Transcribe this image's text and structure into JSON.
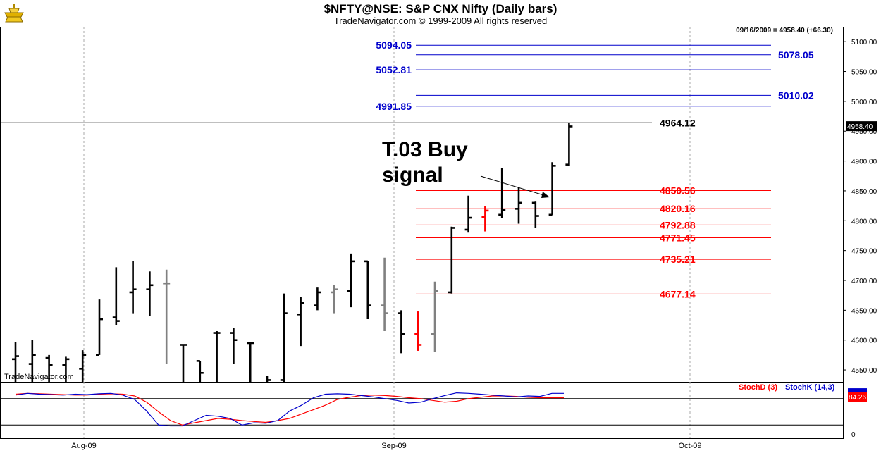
{
  "header": {
    "title": "$NFTY@NSE:  S&P CNX Nifty  (Daily bars)",
    "subtitle": "TradeNavigator.com © 1999-2009 All rights reserved",
    "quote": "09/16/2009 = 4958.40 (+66.30)",
    "watermark": "TradeNavigator.com"
  },
  "chart_data": [
    {
      "type": "bar",
      "subtype": "ohlc",
      "title": "$NFTY@NSE:  S&P CNX Nifty  (Daily bars)",
      "ylim": [
        4530,
        5125
      ],
      "y_ticks": [
        5100,
        5050,
        5000,
        4950,
        4900,
        4850,
        4800,
        4750,
        4700,
        4650,
        4600,
        4550
      ],
      "y_tick_labels": [
        "5100.00",
        "5050.00",
        "5000.00",
        "4950.00",
        "4900.00",
        "4850.00",
        "4800.00",
        "4750.00",
        "4700.00",
        "4650.00",
        "4600.00",
        "4550.00"
      ],
      "x_tick_labels": [
        "Aug-09",
        "Sep-09",
        "Oct-09"
      ],
      "last_price_label": "4958.40",
      "last_price": 4958.4,
      "bars": [
        {
          "o": 4568,
          "h": 4597,
          "l": 4530,
          "c": 4573,
          "color": "#000000"
        },
        {
          "o": 4560,
          "h": 4600,
          "l": 4530,
          "c": 4575,
          "color": "#000000"
        },
        {
          "o": 4570,
          "h": 4575,
          "l": 4530,
          "c": 4558,
          "color": "#000000"
        },
        {
          "o": 4558,
          "h": 4572,
          "l": 4530,
          "c": 4568,
          "color": "#000000"
        },
        {
          "o": 4552,
          "h": 4583,
          "l": 4530,
          "c": 4575,
          "color": "#000000"
        },
        {
          "o": 4575,
          "h": 4668,
          "l": 4575,
          "c": 4635,
          "color": "#000000"
        },
        {
          "o": 4638,
          "h": 4722,
          "l": 4625,
          "c": 4632,
          "color": "#000000"
        },
        {
          "o": 4680,
          "h": 4732,
          "l": 4645,
          "c": 4685,
          "color": "#000000"
        },
        {
          "o": 4685,
          "h": 4715,
          "l": 4640,
          "c": 4692,
          "color": "#000000"
        },
        {
          "o": 4695,
          "h": 4718,
          "l": 4560,
          "c": 4695,
          "color": "#808080"
        },
        {
          "o": 4592,
          "h": 4592,
          "l": 4530,
          "c": 4592,
          "color": "#000000"
        },
        {
          "o": 4565,
          "h": 4565,
          "l": 4530,
          "c": 4545,
          "color": "#000000"
        },
        {
          "o": 4612,
          "h": 4615,
          "l": 4530,
          "c": 4612,
          "color": "#000000"
        },
        {
          "o": 4612,
          "h": 4620,
          "l": 4560,
          "c": 4600,
          "color": "#000000"
        },
        {
          "o": 4595,
          "h": 4597,
          "l": 4530,
          "c": 4595,
          "color": "#000000"
        },
        {
          "o": 4530,
          "h": 4540,
          "l": 4530,
          "c": 4533,
          "color": "#000000"
        },
        {
          "o": 4533,
          "h": 4678,
          "l": 4530,
          "c": 4645,
          "color": "#000000"
        },
        {
          "o": 4643,
          "h": 4672,
          "l": 4590,
          "c": 4662,
          "color": "#000000"
        },
        {
          "o": 4658,
          "h": 4688,
          "l": 4650,
          "c": 4680,
          "color": "#000000"
        },
        {
          "o": 4680,
          "h": 4692,
          "l": 4645,
          "c": 4685,
          "color": "#808080"
        },
        {
          "o": 4682,
          "h": 4745,
          "l": 4655,
          "c": 4732,
          "color": "#000000"
        },
        {
          "o": 4732,
          "h": 4732,
          "l": 4635,
          "c": 4658,
          "color": "#000000"
        },
        {
          "o": 4658,
          "h": 4738,
          "l": 4615,
          "c": 4645,
          "color": "#808080"
        },
        {
          "o": 4645,
          "h": 4650,
          "l": 4578,
          "c": 4610,
          "color": "#000000"
        },
        {
          "o": 4610,
          "h": 4648,
          "l": 4582,
          "c": 4592,
          "color": "#ff0000"
        },
        {
          "o": 4610,
          "h": 4698,
          "l": 4580,
          "c": 4682,
          "color": "#808080"
        },
        {
          "o": 4680,
          "h": 4790,
          "l": 4678,
          "c": 4788,
          "color": "#000000"
        },
        {
          "o": 4785,
          "h": 4842,
          "l": 4780,
          "c": 4805,
          "color": "#000000"
        },
        {
          "o": 4806,
          "h": 4824,
          "l": 4782,
          "c": 4817,
          "color": "#ff0000"
        },
        {
          "o": 4810,
          "h": 4888,
          "l": 4805,
          "c": 4818,
          "color": "#000000"
        },
        {
          "o": 4820,
          "h": 4856,
          "l": 4795,
          "c": 4830,
          "color": "#000000"
        },
        {
          "o": 4830,
          "h": 4832,
          "l": 4788,
          "c": 4808,
          "color": "#000000"
        },
        {
          "o": 4810,
          "h": 4898,
          "l": 4810,
          "c": 4892,
          "color": "#000000"
        },
        {
          "o": 4894,
          "h": 4964,
          "l": 4892,
          "c": 4958,
          "color": "#000000"
        }
      ],
      "levels": [
        {
          "value": 5094.05,
          "label": "5094.05",
          "label_side": "left",
          "color": "#0000cc"
        },
        {
          "value": 5078.05,
          "label": "5078.05",
          "label_side": "right",
          "color": "#0000cc"
        },
        {
          "value": 5052.81,
          "label": "5052.81",
          "label_side": "left",
          "color": "#0000cc"
        },
        {
          "value": 5010.02,
          "label": "5010.02",
          "label_side": "right",
          "color": "#0000cc"
        },
        {
          "value": 4991.85,
          "label": "4991.85",
          "label_side": "left",
          "color": "#0000cc"
        },
        {
          "value": 4964.12,
          "label": "4964.12",
          "label_side": "right",
          "color": "#000000"
        },
        {
          "value": 4850.56,
          "label": "4850.56",
          "label_side": "right",
          "color": "#ff0000"
        },
        {
          "value": 4820.16,
          "label": "4820.16",
          "label_side": "right",
          "color": "#ff0000"
        },
        {
          "value": 4792.88,
          "label": "4792.88",
          "label_side": "right",
          "color": "#ff0000"
        },
        {
          "value": 4771.45,
          "label": "4771.45",
          "label_side": "right",
          "color": "#ff0000"
        },
        {
          "value": 4735.21,
          "label": "4735.21",
          "label_side": "right",
          "color": "#ff0000"
        },
        {
          "value": 4677.14,
          "label": "4677.14",
          "label_side": "right",
          "color": "#ff0000"
        }
      ],
      "annotation": {
        "line1": "T.03 Buy",
        "line2": "signal"
      },
      "grid": true
    },
    {
      "type": "line",
      "title": "",
      "ylim": [
        -10,
        118
      ],
      "y_tick_labels": [
        "0"
      ],
      "current_value_label": "84.26",
      "series": [
        {
          "name": "StochD (3)",
          "color": "#ff0000",
          "values": [
            90,
            92,
            91,
            90,
            89,
            88,
            88,
            90,
            91,
            90,
            86,
            72,
            50,
            30,
            20,
            25,
            30,
            35,
            33,
            30,
            28,
            26,
            30,
            35,
            45,
            55,
            65,
            78,
            83,
            87,
            88,
            87,
            85,
            82,
            80,
            76,
            72,
            74,
            80,
            83,
            86,
            86,
            85,
            83,
            82,
            82,
            82
          ]
        },
        {
          "name": "StochK (14,3)",
          "color": "#0000cc",
          "values": [
            88,
            92,
            90,
            89,
            88,
            90,
            89,
            91,
            92,
            88,
            78,
            52,
            20,
            18,
            18,
            30,
            42,
            40,
            35,
            20,
            25,
            24,
            30,
            52,
            65,
            82,
            90,
            91,
            90,
            87,
            84,
            80,
            76,
            70,
            72,
            80,
            87,
            93,
            92,
            90,
            88,
            86,
            84,
            86,
            85,
            92,
            92
          ]
        }
      ],
      "reference_lines": [
        80,
        20
      ]
    }
  ]
}
